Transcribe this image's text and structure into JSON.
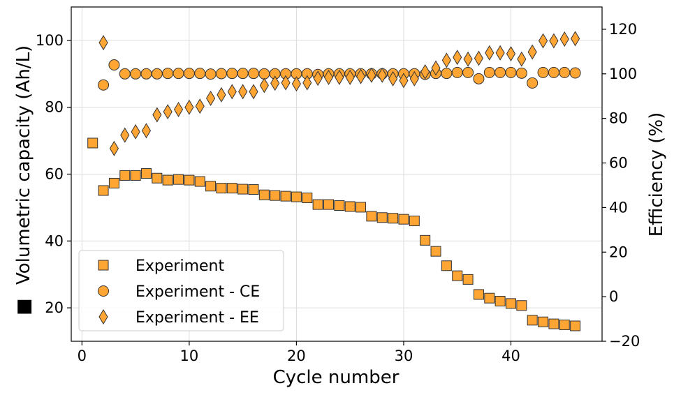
{
  "chart_data": {
    "type": "scatter",
    "xlabel": "Cycle number",
    "ylabel_prefix": "■",
    "ylabel": "Volumetric capacity (Ah/L)",
    "y2label": "Efficiency (%)",
    "xlim": [
      -1,
      48.5
    ],
    "ylim": [
      10,
      110
    ],
    "y2lim": [
      -20,
      130
    ],
    "xticks": [
      0,
      10,
      20,
      30,
      40
    ],
    "yticks": [
      20,
      40,
      60,
      80,
      100
    ],
    "y2ticks": [
      -20,
      0,
      20,
      40,
      60,
      80,
      100,
      120
    ],
    "grid": true,
    "legend_position": "lower-left",
    "marker_color": "#ffa533",
    "marker_edge": "#333333",
    "series": [
      {
        "name": "Experiment",
        "marker": "square",
        "axis": "left",
        "x": [
          1,
          2,
          3,
          4,
          5,
          6,
          7,
          8,
          9,
          10,
          11,
          12,
          13,
          14,
          15,
          16,
          17,
          18,
          19,
          20,
          21,
          22,
          23,
          24,
          25,
          26,
          27,
          28,
          29,
          30,
          31,
          32,
          33,
          34,
          35,
          36,
          37,
          38,
          39,
          40,
          41,
          42,
          43,
          44,
          45,
          46
        ],
        "y": [
          69.3,
          55.1,
          57.3,
          59.6,
          59.6,
          60.2,
          58.8,
          58.2,
          58.4,
          58.2,
          57.8,
          56.4,
          55.8,
          55.8,
          55.5,
          55.4,
          53.8,
          53.6,
          53.4,
          53.2,
          52.9,
          50.9,
          50.9,
          50.6,
          50.3,
          50.1,
          47.4,
          47.0,
          46.8,
          46.5,
          46.0,
          40.2,
          36.9,
          32.6,
          29.6,
          28.5,
          24.0,
          22.9,
          22.0,
          21.3,
          20.7,
          16.3,
          15.8,
          15.2,
          14.9,
          14.6
        ]
      },
      {
        "name": "Experiment - CE",
        "marker": "circle",
        "axis": "right",
        "x": [
          2,
          3,
          4,
          5,
          6,
          7,
          8,
          9,
          10,
          11,
          12,
          13,
          14,
          15,
          16,
          17,
          18,
          19,
          20,
          21,
          22,
          23,
          24,
          25,
          26,
          27,
          28,
          29,
          30,
          31,
          32,
          33,
          34,
          35,
          36,
          37,
          38,
          39,
          40,
          41,
          42,
          43,
          44,
          45,
          46
        ],
        "y": [
          95,
          104,
          100,
          100,
          100,
          100,
          100.2,
          100.2,
          100.2,
          100.2,
          99.9,
          100.1,
          100.2,
          100.2,
          100.2,
          100,
          100,
          100,
          100,
          100,
          99.7,
          100,
          100,
          100,
          100,
          100,
          100,
          100,
          100,
          100,
          99.8,
          100.2,
          100.2,
          100.6,
          100.6,
          97.8,
          100.6,
          100.6,
          100.6,
          100.3,
          95.9,
          100.6,
          100.6,
          100.6,
          100.4
        ]
      },
      {
        "name": "Experiment - EE",
        "marker": "diamond",
        "axis": "right",
        "x": [
          2,
          3,
          4,
          5,
          6,
          7,
          8,
          9,
          10,
          11,
          12,
          13,
          14,
          15,
          16,
          17,
          18,
          19,
          20,
          21,
          22,
          23,
          24,
          25,
          26,
          27,
          28,
          29,
          30,
          31,
          32,
          33,
          34,
          35,
          36,
          37,
          38,
          39,
          40,
          41,
          42,
          43,
          44,
          45,
          46
        ],
        "y": [
          114,
          66.5,
          72.5,
          74,
          74.5,
          81.6,
          83,
          84,
          85,
          85.5,
          89,
          90.6,
          92,
          92,
          92,
          94.8,
          95.8,
          96,
          95.5,
          96,
          98,
          98.4,
          98.4,
          98.4,
          98.8,
          99.4,
          99.4,
          97.8,
          97,
          97.8,
          100.9,
          102.6,
          106.1,
          107.4,
          106.6,
          107,
          109.4,
          109.4,
          109,
          106.6,
          109.8,
          114.8,
          114.8,
          115.6,
          115.8
        ]
      }
    ]
  }
}
